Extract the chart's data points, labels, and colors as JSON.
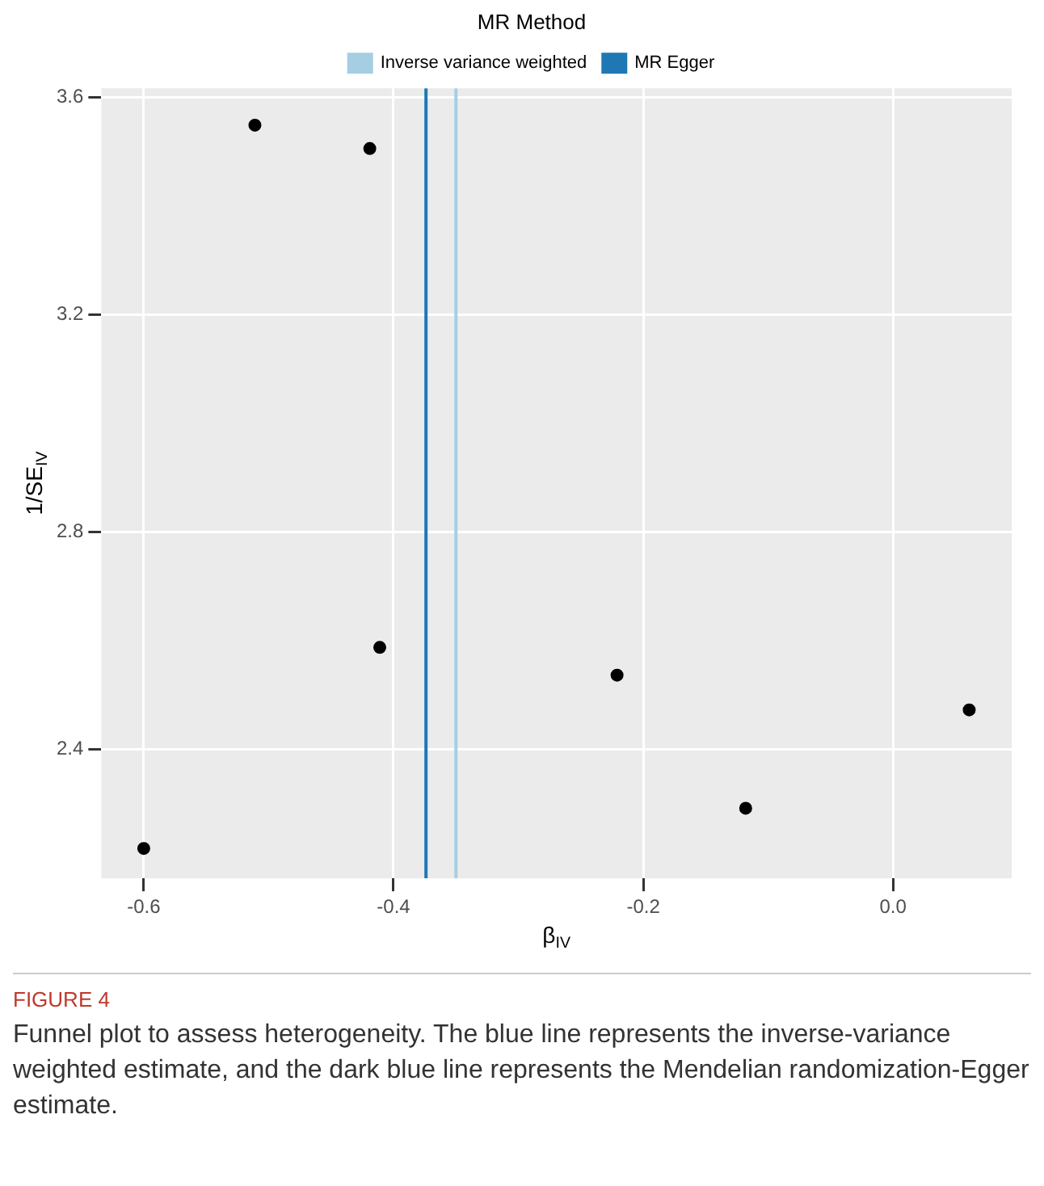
{
  "chart_data": {
    "type": "scatter",
    "xlabel": "β$_{IV}$",
    "ylabel": "1/SE$_{IV}$",
    "legend_title": "MR Method",
    "x": [
      -0.6,
      -0.511,
      -0.419,
      -0.411,
      -0.221,
      -0.118,
      0.061
    ],
    "series": [
      {
        "color": "#000000",
        "values": [
          2.218,
          3.549,
          3.506,
          2.588,
          2.537,
          2.292,
          2.473
        ]
      }
    ],
    "xlim": [
      -0.634,
      0.095
    ],
    "xticks": [
      -0.6,
      -0.4,
      -0.2,
      {
        "value": 0,
        "label": "0.0"
      }
    ],
    "ylim": [
      2.163,
      3.617
    ],
    "yticks": [
      2.4,
      2.8,
      3.2,
      3.6
    ],
    "ref_lines": [
      {
        "axis": "x",
        "value": -0.35,
        "label": "Inverse variance weighted",
        "color": "#a6cee3"
      },
      {
        "axis": "x",
        "value": -0.374,
        "label": "MR Egger",
        "color": "#1f78b4"
      }
    ],
    "grid": true,
    "legend": "top",
    "marker": "circle",
    "annotations": [
      "FIGURE 4",
      "Funnel plot to assess heterogeneity. The blue line represents the inverse-variance weighted estimate, and the dark blue line represents the Mendelian randomization-Egger estimate."
    ]
  }
}
